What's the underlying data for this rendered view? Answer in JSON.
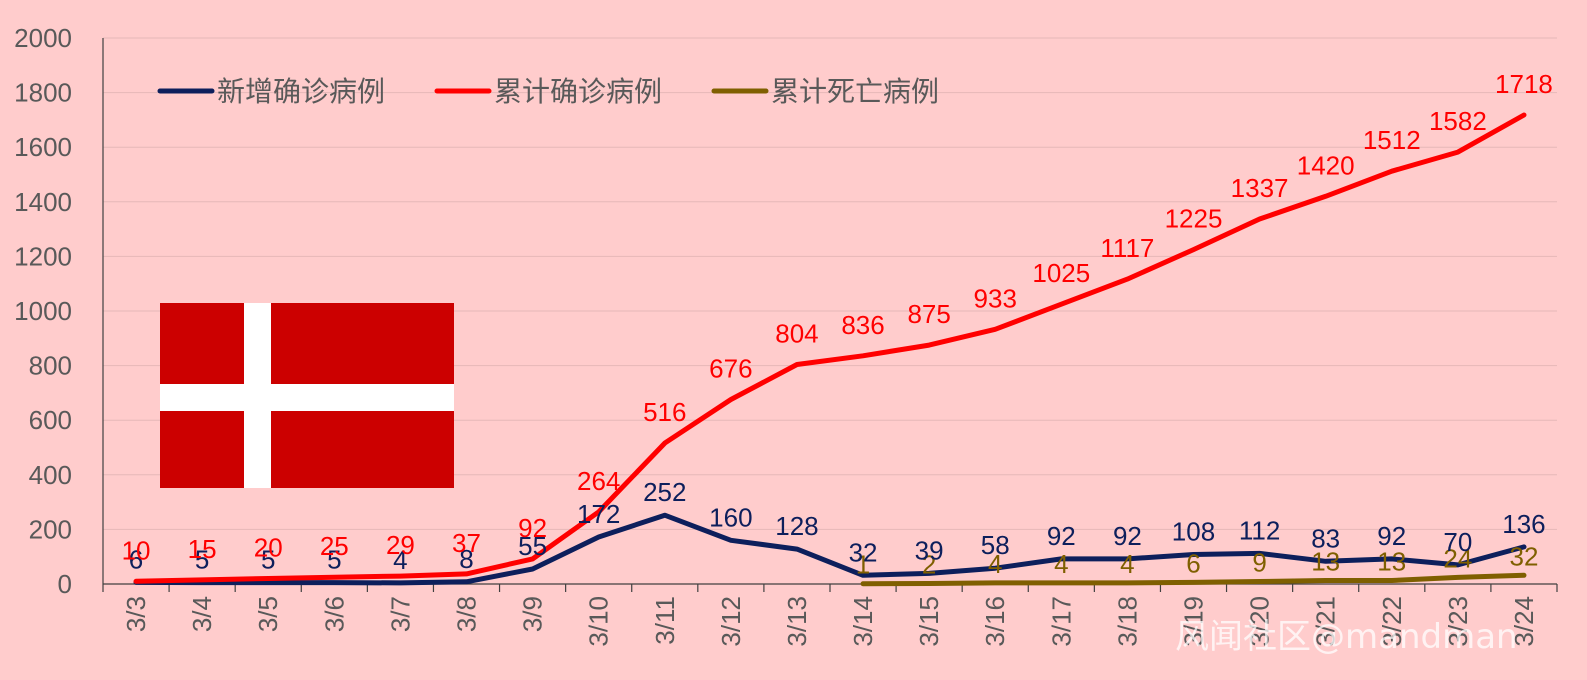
{
  "chart_data": {
    "type": "line",
    "categories": [
      "3/3",
      "3/4",
      "3/5",
      "3/6",
      "3/7",
      "3/8",
      "3/9",
      "3/10",
      "3/11",
      "3/12",
      "3/13",
      "3/14",
      "3/15",
      "3/16",
      "3/17",
      "3/18",
      "3/19",
      "3/20",
      "3/21",
      "3/22",
      "3/23",
      "3/24"
    ],
    "ylim": [
      0,
      2000
    ],
    "yticks": [
      0,
      200,
      400,
      600,
      800,
      1000,
      1200,
      1400,
      1600,
      1800,
      2000
    ],
    "grid": true,
    "legend_position": "top-left",
    "series": [
      {
        "name": "新增确诊病例",
        "color": "#0d1f5c",
        "values": [
          6,
          5,
          5,
          5,
          4,
          8,
          55,
          172,
          252,
          160,
          128,
          32,
          39,
          58,
          92,
          92,
          108,
          112,
          83,
          92,
          70,
          136
        ]
      },
      {
        "name": "累计确诊病例",
        "color": "#ff0000",
        "values": [
          10,
          15,
          20,
          25,
          29,
          37,
          92,
          264,
          516,
          676,
          804,
          836,
          875,
          933,
          1025,
          1117,
          1225,
          1337,
          1420,
          1512,
          1582,
          1718
        ]
      },
      {
        "name": "累计死亡病例",
        "color": "#7f5f00",
        "values": [
          null,
          null,
          null,
          null,
          null,
          null,
          null,
          null,
          null,
          null,
          null,
          1,
          2,
          4,
          4,
          4,
          6,
          9,
          13,
          13,
          24,
          32
        ]
      }
    ]
  },
  "flag": {
    "name": "Denmark",
    "field_color": "#cc0000",
    "cross_color": "#ffffff"
  },
  "watermark": "风闻社区@mandman"
}
